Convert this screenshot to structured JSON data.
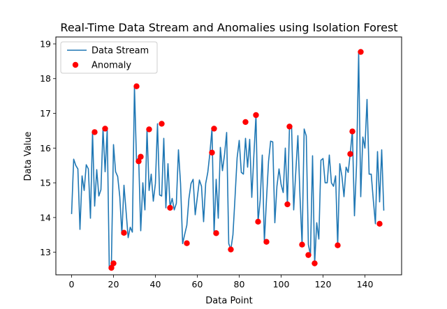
{
  "chart_data": {
    "type": "line",
    "title": "Real-Time Data Stream and Anomalies using Isolation Forest",
    "xlabel": "Data Point",
    "ylabel": "Data Value",
    "xlim": [
      -7.5,
      157.5
    ],
    "ylim": [
      12.35,
      19.2
    ],
    "xticks": [
      0,
      20,
      40,
      60,
      80,
      100,
      120,
      140
    ],
    "yticks": [
      13,
      14,
      15,
      16,
      17,
      18,
      19
    ],
    "grid": false,
    "legend_position": "top-left",
    "colors": {
      "line": "#1f77b4",
      "anomaly": "#ff0000"
    },
    "series": [
      {
        "name": "Data Stream",
        "kind": "line",
        "y": [
          14.1,
          15.68,
          15.5,
          15.4,
          13.66,
          15.2,
          14.78,
          15.52,
          15.4,
          13.98,
          16.46,
          14.33,
          15.38,
          14.62,
          14.8,
          16.56,
          15.32,
          16.54,
          12.52,
          12.66,
          16.1,
          15.32,
          15.18,
          14.6,
          13.52,
          14.93,
          14.18,
          13.42,
          13.72,
          13.58,
          17.78,
          15.6,
          15.74,
          13.62,
          15,
          14.22,
          16.53,
          14.78,
          15.25,
          14.47,
          14.98,
          16.7,
          14.65,
          14.62,
          16.28,
          14.28,
          15.55,
          14.3,
          14.55,
          14.22,
          14.41,
          15.95,
          14.98,
          13.25,
          13.52,
          13.78,
          14.55,
          14.98,
          15.1,
          14.08,
          14.58,
          15.08,
          14.9,
          13.88,
          14.98,
          15.3,
          15.85,
          16.56,
          13.55,
          15.1,
          13.98,
          16.02,
          15.35,
          15.82,
          16.45,
          13.25,
          13.08,
          13.5,
          14.58,
          15.72,
          16.22,
          15.3,
          15.25,
          16.28,
          15.45,
          16.25,
          14.58,
          15.8,
          16.95,
          13.88,
          14.5,
          15.8,
          13.3,
          14.5,
          15.62,
          16.2,
          16.18,
          13.85,
          14.9,
          15.4,
          14.95,
          14.72,
          16,
          14.38,
          16.62,
          16.62,
          14.22,
          15.32,
          16.36,
          14.62,
          13.22,
          16.55,
          16.35,
          13.22,
          12.92,
          15.78,
          12.68,
          13.85,
          13.38,
          15.65,
          15.7,
          15,
          15,
          15.8,
          15,
          14.9,
          15.2,
          13.2,
          15.55,
          15.2,
          14.6,
          15.45,
          15.3,
          15.85,
          16.5,
          14.05,
          15.52,
          18.75,
          14.6,
          16.32,
          16,
          17.4,
          15.25,
          15.25,
          14.5,
          13.82,
          15.9,
          14.45,
          15.95,
          14.2
        ]
      },
      {
        "name": "Anomaly",
        "kind": "scatter",
        "points": [
          [
            11,
            16.46
          ],
          [
            16,
            16.56
          ],
          [
            19,
            12.55
          ],
          [
            20,
            12.68
          ],
          [
            25,
            13.56
          ],
          [
            31,
            17.78
          ],
          [
            32,
            15.62
          ],
          [
            33,
            15.75
          ],
          [
            37,
            16.54
          ],
          [
            43,
            16.7
          ],
          [
            47,
            14.28
          ],
          [
            55,
            13.26
          ],
          [
            67,
            15.87
          ],
          [
            68,
            16.56
          ],
          [
            69,
            13.55
          ],
          [
            76,
            13.08
          ],
          [
            83,
            16.75
          ],
          [
            88,
            16.95
          ],
          [
            89,
            13.88
          ],
          [
            93,
            13.3
          ],
          [
            103,
            14.38
          ],
          [
            104,
            16.62
          ],
          [
            110,
            13.22
          ],
          [
            113,
            12.92
          ],
          [
            116,
            12.68
          ],
          [
            127,
            13.2
          ],
          [
            133,
            15.83
          ],
          [
            134,
            16.48
          ],
          [
            138,
            18.77
          ],
          [
            147,
            13.82
          ]
        ]
      }
    ]
  }
}
